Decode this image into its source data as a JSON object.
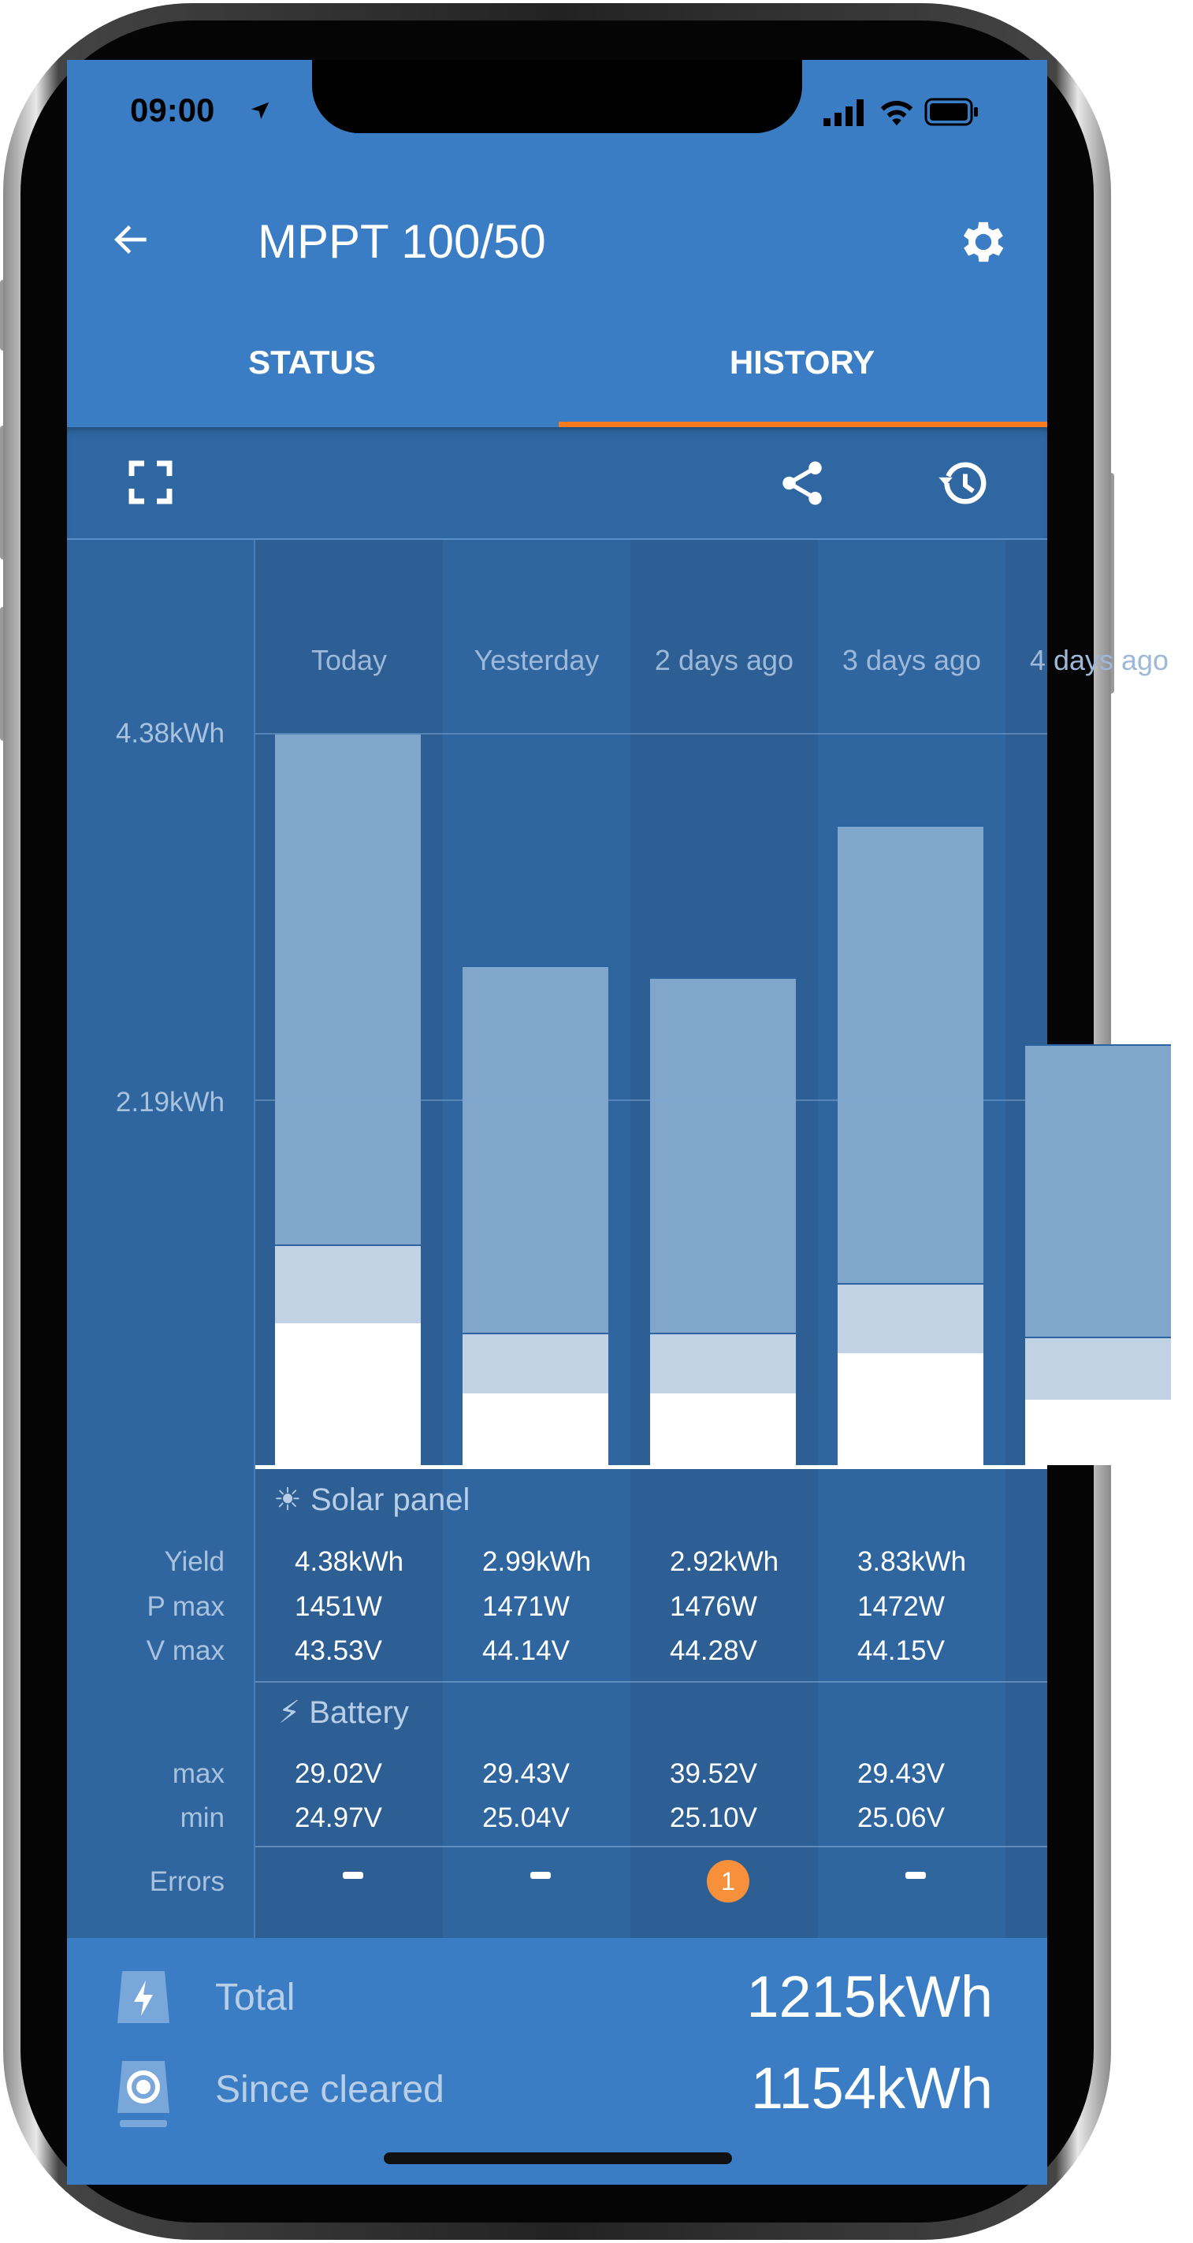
{
  "status_bar": {
    "time": "09:00"
  },
  "header": {
    "title": "MPPT 100/50"
  },
  "tabs": [
    {
      "label": "STATUS",
      "active": false
    },
    {
      "label": "HISTORY",
      "active": true
    }
  ],
  "colors": {
    "accent": "#f47b20",
    "header": "#3a7dc4",
    "bar_bulk": "#80a6cb",
    "bar_absorption": "#c1d2e5",
    "bar_float": "#ffffff",
    "error_badge": "#f7903a"
  },
  "icons": {
    "back": "arrow-left-icon",
    "settings": "gear-icon",
    "expand": "fullscreen-icon",
    "share": "share-icon",
    "history": "history-icon"
  },
  "chart_data": {
    "type": "bar",
    "stacked": true,
    "categories": [
      "Today",
      "Yesterday",
      "2 days ago",
      "3 days ago",
      "4 days ago"
    ],
    "y_ticks": [
      "4.38kWh",
      "2.19kWh"
    ],
    "y_tick_values": [
      4.38,
      2.19
    ],
    "ylim": [
      0,
      4.38
    ],
    "series": [
      {
        "values": [
          0.85,
          0.43,
          0.43,
          0.67,
          0.39
        ]
      },
      {
        "values": [
          0.47,
          0.36,
          0.36,
          0.42,
          0.38
        ]
      },
      {
        "values": [
          3.06,
          2.2,
          2.13,
          2.74,
          1.75
        ]
      }
    ]
  },
  "solar": {
    "title": "Solar panel",
    "rows": [
      {
        "label": "Yield",
        "values": [
          "4.38kWh",
          "2.99kWh",
          "2.92kWh",
          "3.83kWh"
        ]
      },
      {
        "label": "P max",
        "values": [
          "1451W",
          "1471W",
          "1476W",
          "1472W"
        ]
      },
      {
        "label": "V max",
        "values": [
          "43.53V",
          "44.14V",
          "44.28V",
          "44.15V"
        ]
      }
    ]
  },
  "battery": {
    "title": "Battery",
    "rows": [
      {
        "label": "max",
        "values": [
          "29.02V",
          "29.43V",
          "39.52V",
          "29.43V"
        ]
      },
      {
        "label": "min",
        "values": [
          "24.97V",
          "25.04V",
          "25.10V",
          "25.06V"
        ]
      }
    ]
  },
  "errors": {
    "label": "Errors",
    "values": [
      "-",
      "-",
      "1",
      "-"
    ]
  },
  "totals": [
    {
      "label": "Total",
      "value": "1215kWh"
    },
    {
      "label": "Since cleared",
      "value": "1154kWh"
    }
  ]
}
